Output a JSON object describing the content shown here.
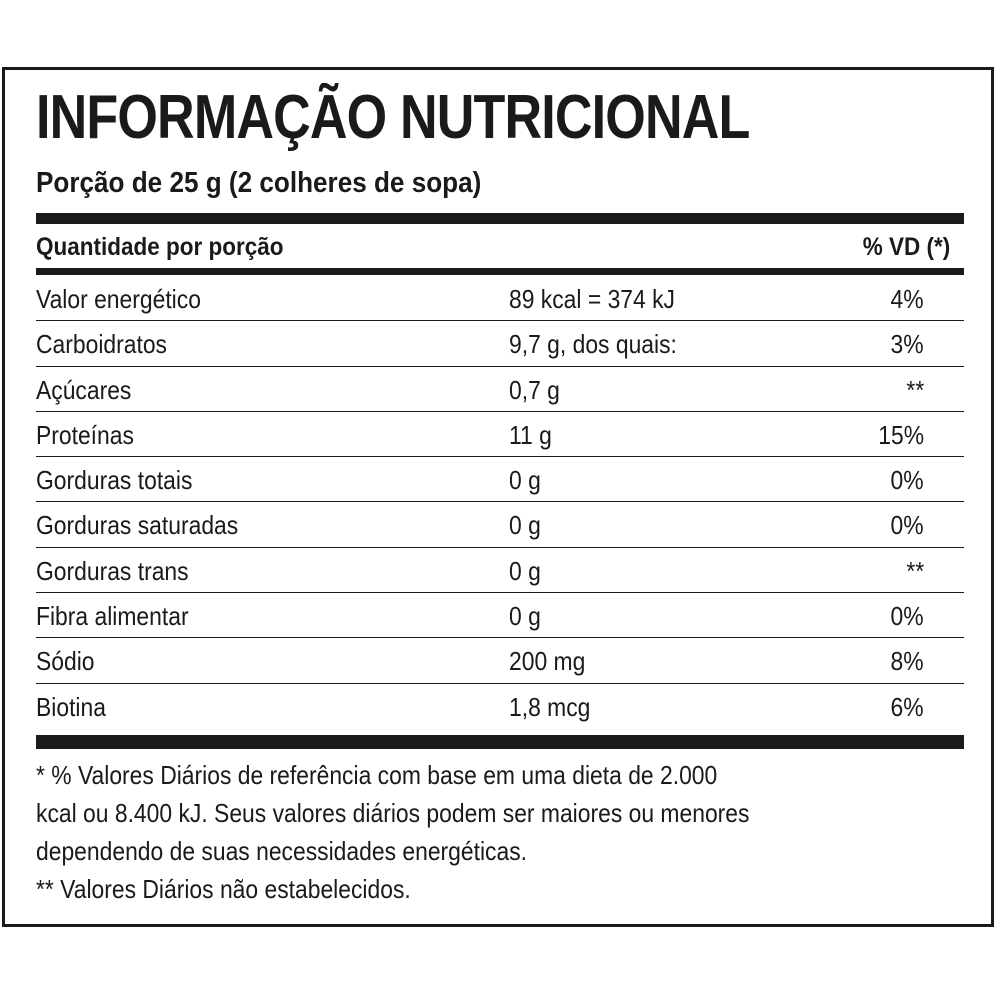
{
  "title": "INFORMAÇÃO NUTRICIONAL",
  "serving": "Porção de 25 g (2 colheres de sopa)",
  "header": {
    "left": "Quantidade por porção",
    "right": "% VD (*)"
  },
  "rows": [
    {
      "name": "Valor energético",
      "qty": "89 kcal = 374 kJ",
      "vd": "4%"
    },
    {
      "name": "Carboidratos",
      "qty": "9,7 g, dos quais:",
      "vd": "3%"
    },
    {
      "name": "Açúcares",
      "qty": "0,7 g",
      "vd": "**"
    },
    {
      "name": "Proteínas",
      "qty": "11 g",
      "vd": "15%"
    },
    {
      "name": "Gorduras totais",
      "qty": "0 g",
      "vd": "0%"
    },
    {
      "name": "Gorduras saturadas",
      "qty": "0 g",
      "vd": "0%"
    },
    {
      "name": "Gorduras trans",
      "qty": "0 g",
      "vd": "**"
    },
    {
      "name": "Fibra alimentar",
      "qty": "0 g",
      "vd": "0%"
    },
    {
      "name": "Sódio",
      "qty": "200 mg",
      "vd": "8%"
    },
    {
      "name": "Biotina",
      "qty": "1,8 mcg",
      "vd": "6%"
    }
  ],
  "footnote": {
    "line1": "* % Valores Diários de referência com base em uma dieta de 2.000",
    "line2": "kcal ou 8.400 kJ. Seus valores diários podem ser maiores ou menores",
    "line3": "dependendo de suas necessidades energéticas.",
    "line4": "** Valores Diários não estabelecidos."
  }
}
